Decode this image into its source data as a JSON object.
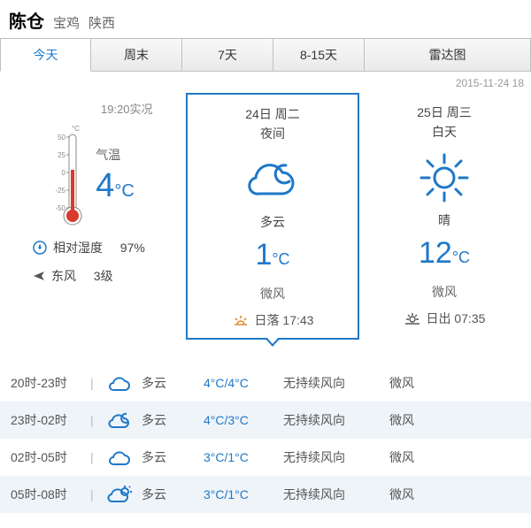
{
  "header": {
    "city": "陈仓",
    "prefecture": "宝鸡",
    "province": "陕西"
  },
  "tabs": [
    "今天",
    "周末",
    "7天",
    "8-15天",
    "雷达图"
  ],
  "active_tab": 0,
  "timestamp": "2015-11-24 18",
  "now": {
    "obs_time": "19:20实况",
    "label": "气温",
    "temp": "4",
    "unit": "°C",
    "humidity_label": "相对湿度",
    "humidity": "97%",
    "wind_dir": "东风",
    "wind_level": "3级"
  },
  "cards": [
    {
      "date": "24日 周二",
      "part": "夜间",
      "icon": "cloudy-night",
      "cond": "多云",
      "temp": "1",
      "unit": "°C",
      "wind": "微风",
      "sun_icon": "sunset",
      "sun_label": "日落 17:43"
    },
    {
      "date": "25日 周三",
      "part": "白天",
      "icon": "sunny",
      "cond": "晴",
      "temp": "12",
      "unit": "°C",
      "wind": "微风",
      "sun_icon": "sunrise",
      "sun_label": "日出 07:35"
    }
  ],
  "hourly": [
    {
      "time": "20时-23时",
      "icon": "cloudy",
      "cond": "多云",
      "hi": "4°C",
      "lo": "4°C",
      "wdir": "无持续风向",
      "wlvl": "微风",
      "alt": false
    },
    {
      "time": "23时-02时",
      "icon": "cloudy-night",
      "cond": "多云",
      "hi": "4°C",
      "lo": "3°C",
      "wdir": "无持续风向",
      "wlvl": "微风",
      "alt": true
    },
    {
      "time": "02时-05时",
      "icon": "cloudy",
      "cond": "多云",
      "hi": "3°C",
      "lo": "1°C",
      "wdir": "无持续风向",
      "wlvl": "微风",
      "alt": false
    },
    {
      "time": "05时-08时",
      "icon": "partly-sunny",
      "cond": "多云",
      "hi": "3°C",
      "lo": "1°C",
      "wdir": "无持续风向",
      "wlvl": "微风",
      "alt": true
    }
  ],
  "colors": {
    "accent": "#1f78c8",
    "red": "#d93a2b"
  }
}
